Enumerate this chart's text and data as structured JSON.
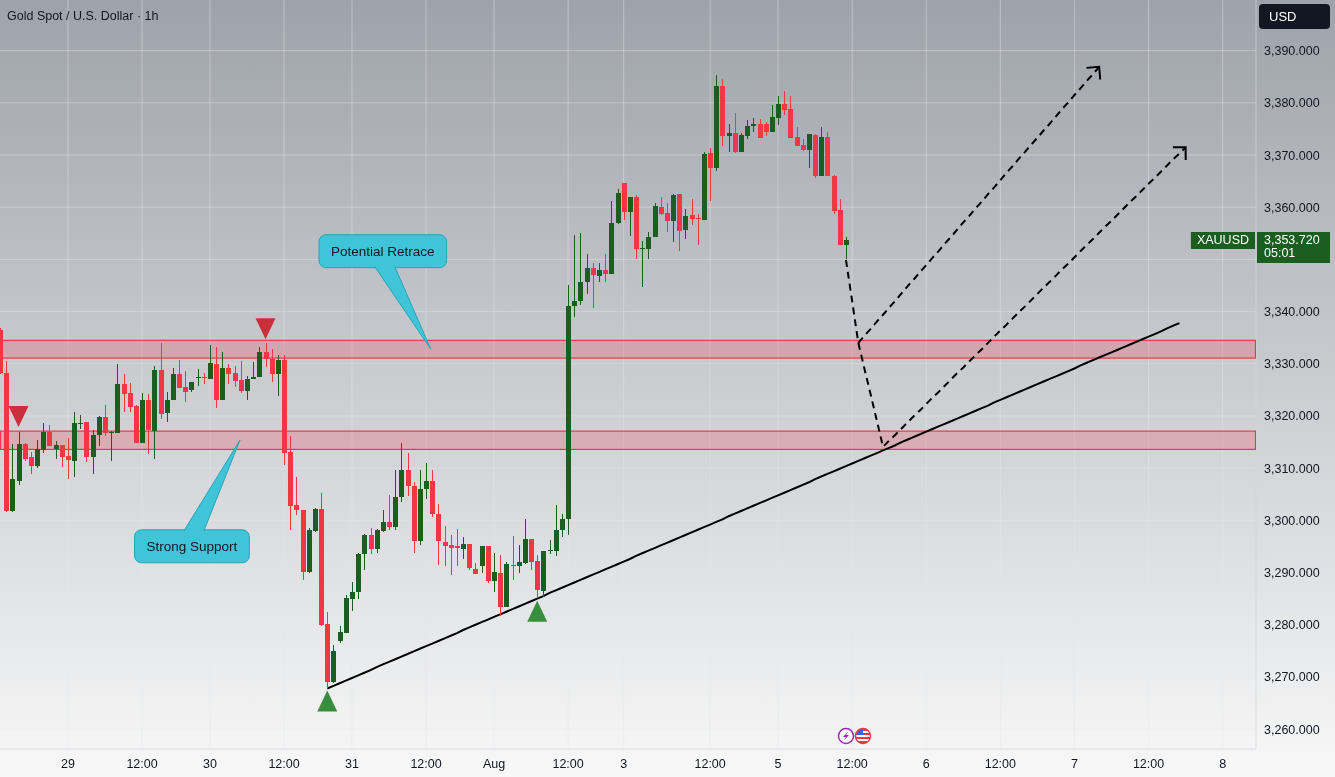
{
  "chart_data": {
    "type": "candlestick",
    "title": "Gold Spot / U.S. Dollar · 1h",
    "ylabel": "USD",
    "ylim": [
      3256.2,
      3399.7
    ],
    "yticks": [
      {
        "value": 3260,
        "label": "3,260.000"
      },
      {
        "value": 3270,
        "label": "3,270.000"
      },
      {
        "value": 3280,
        "label": "3,280.000"
      },
      {
        "value": 3290,
        "label": "3,290.000"
      },
      {
        "value": 3300,
        "label": "3,300.000"
      },
      {
        "value": 3310,
        "label": "3,310.000"
      },
      {
        "value": 3320,
        "label": "3,320.000"
      },
      {
        "value": 3330,
        "label": "3,330.000"
      },
      {
        "value": 3340,
        "label": "3,340.000"
      },
      {
        "value": 3350,
        "label": null
      },
      {
        "value": 3360,
        "label": "3,360.000"
      },
      {
        "value": 3370,
        "label": "3,370.000"
      },
      {
        "value": 3380,
        "label": "3,380.000"
      },
      {
        "value": 3390,
        "label": "3,390.000"
      }
    ],
    "grid": true,
    "categories": [
      null,
      null,
      null,
      null,
      null,
      null,
      null,
      null,
      null,
      null,
      null,
      "29",
      null,
      null,
      null,
      null,
      null,
      null,
      null,
      null,
      null,
      null,
      null,
      "12:00",
      null,
      null,
      null,
      null,
      null,
      null,
      null,
      null,
      null,
      null,
      "30",
      null,
      null,
      null,
      null,
      null,
      null,
      null,
      null,
      null,
      null,
      null,
      "12:00",
      null,
      null,
      null,
      null,
      null,
      null,
      null,
      null,
      null,
      null,
      "31",
      null,
      null,
      null,
      null,
      null,
      null,
      null,
      null,
      null,
      null,
      null,
      "12:00",
      null,
      null,
      null,
      null,
      null,
      null,
      null,
      null,
      null,
      null,
      "Aug",
      null,
      null,
      null,
      null,
      null,
      null,
      null,
      null,
      null,
      null,
      null,
      "12:00",
      null,
      null,
      null,
      null,
      null,
      null,
      null,
      null,
      "3",
      null,
      null,
      null,
      null,
      null,
      null,
      null,
      null,
      null,
      null,
      null,
      null,
      null,
      "12:00",
      null,
      null,
      null,
      null,
      null,
      null,
      null,
      null,
      null,
      null,
      "5",
      null,
      null,
      null,
      null,
      null,
      null,
      null,
      null,
      null,
      null,
      null,
      "12:00",
      null,
      null,
      null,
      null,
      null,
      null,
      null,
      null,
      null,
      null,
      null,
      "6",
      null,
      null,
      null,
      null,
      null,
      null,
      null,
      null,
      null,
      null,
      null,
      "12:00",
      null,
      null,
      null,
      null,
      null,
      null,
      null,
      null,
      null,
      null,
      null,
      "7",
      null,
      null,
      null,
      null,
      null,
      null,
      null,
      null,
      null,
      null,
      null,
      "12:00",
      null,
      null,
      null,
      null,
      null,
      null,
      null,
      null,
      null,
      null,
      null,
      "8",
      null,
      null,
      null,
      null,
      null
    ],
    "ohlc": [
      [
        3336.5,
        3336.8,
        3328.0,
        3328.2
      ],
      [
        3328.3,
        3330.6,
        3301.6,
        3301.8
      ],
      [
        3301.8,
        3314.6,
        3301.6,
        3307.9
      ],
      [
        3307.6,
        3317.0,
        3306.7,
        3314.7
      ],
      [
        3314.7,
        3314.9,
        3311.3,
        3311.8
      ],
      [
        3312.2,
        3313.1,
        3308.8,
        3310.5
      ],
      [
        3310.5,
        3315.4,
        3310.1,
        3313.7
      ],
      [
        3313.4,
        3318.7,
        3313.0,
        3317.0
      ],
      [
        3317.0,
        3318.3,
        3314.2,
        3314.2
      ],
      [
        3313.6,
        3315.2,
        3311.8,
        3314.5
      ],
      [
        3314.5,
        3314.5,
        3310.3,
        3312.2
      ],
      [
        3312.4,
        3315.8,
        3308.0,
        3311.5
      ],
      [
        3311.3,
        3320.8,
        3308.4,
        3318.6
      ],
      [
        3318.6,
        3320.2,
        3317.5,
        3318.7
      ],
      [
        3318.9,
        3318.9,
        3311.1,
        3312.2
      ],
      [
        3312.2,
        3317.3,
        3308.9,
        3316.4
      ],
      [
        3316.3,
        3320.0,
        3314.2,
        3319.8
      ],
      [
        3319.8,
        3322.1,
        3316.2,
        3316.8
      ],
      [
        3316.9,
        3317.1,
        3311.3,
        3317.0
      ],
      [
        3316.7,
        3330.0,
        3316.7,
        3326.1
      ],
      [
        3326.1,
        3328.1,
        3320.8,
        3324.3
      ],
      [
        3324.4,
        3326.3,
        3320.8,
        3321.8
      ],
      [
        3321.9,
        3322.1,
        3314.9,
        3314.9
      ],
      [
        3314.9,
        3324.4,
        3314.9,
        3323.1
      ],
      [
        3323.1,
        3324.2,
        3312.7,
        3317.3
      ],
      [
        3317.2,
        3329.6,
        3311.8,
        3328.8
      ],
      [
        3328.8,
        3333.9,
        3319.5,
        3320.3
      ],
      [
        3320.5,
        3324.6,
        3318.9,
        3323.1
      ],
      [
        3323.0,
        3329.2,
        3323.0,
        3328.1
      ],
      [
        3328.1,
        3330.7,
        3325.3,
        3325.4
      ],
      [
        3325.5,
        3328.6,
        3322.6,
        3324.6
      ],
      [
        3324.9,
        3326.6,
        3324.6,
        3326.5
      ],
      [
        3327.4,
        3329.0,
        3325.8,
        3327.5
      ],
      [
        3327.5,
        3328.3,
        3326.1,
        3327.4
      ],
      [
        3327.1,
        3333.6,
        3327.1,
        3330.2
      ],
      [
        3330.0,
        3333.2,
        3321.6,
        3323.0
      ],
      [
        3323.0,
        3332.3,
        3323.0,
        3329.2
      ],
      [
        3329.2,
        3330.0,
        3326.1,
        3328.1
      ],
      [
        3328.3,
        3329.6,
        3325.6,
        3326.8
      ],
      [
        3326.9,
        3330.6,
        3324.4,
        3324.7
      ],
      [
        3324.7,
        3327.7,
        3323.0,
        3327.1
      ],
      [
        3327.0,
        3330.4,
        3327.0,
        3327.5
      ],
      [
        3327.5,
        3333.2,
        3327.4,
        3332.2
      ],
      [
        3332.2,
        3333.9,
        3329.3,
        3331.0
      ],
      [
        3331.0,
        3332.8,
        3326.6,
        3328.1
      ],
      [
        3328.1,
        3331.6,
        3323.9,
        3330.7
      ],
      [
        3330.7,
        3331.7,
        3310.6,
        3313.0
      ],
      [
        3313.1,
        3316.1,
        3298.2,
        3302.8
      ],
      [
        3303.0,
        3308.4,
        3301.1,
        3301.9
      ],
      [
        3302.0,
        3302.0,
        3288.5,
        3290.2
      ],
      [
        3290.2,
        3298.5,
        3289.9,
        3298.1
      ],
      [
        3297.9,
        3302.3,
        3297.7,
        3302.2
      ],
      [
        3302.2,
        3305.2,
        3279.8,
        3280.0
      ],
      [
        3280.2,
        3282.5,
        3267.9,
        3269.1
      ],
      [
        3269.1,
        3276.2,
        3268.8,
        3275.0
      ],
      [
        3276.9,
        3279.8,
        3276.5,
        3278.6
      ],
      [
        3278.5,
        3285.7,
        3278.4,
        3285.2
      ],
      [
        3285.0,
        3288.2,
        3282.7,
        3286.3
      ],
      [
        3286.2,
        3293.8,
        3284.9,
        3293.6
      ],
      [
        3293.6,
        3297.4,
        3290.4,
        3297.2
      ],
      [
        3297.2,
        3298.5,
        3293.5,
        3294.5
      ],
      [
        3294.5,
        3298.4,
        3293.7,
        3298.1
      ],
      [
        3297.9,
        3301.9,
        3297.7,
        3299.7
      ],
      [
        3299.7,
        3304.8,
        3298.2,
        3298.8
      ],
      [
        3298.8,
        3309.7,
        3298.2,
        3304.4
      ],
      [
        3304.4,
        3314.9,
        3303.5,
        3309.7
      ],
      [
        3309.7,
        3312.9,
        3304.7,
        3306.5
      ],
      [
        3306.6,
        3307.4,
        3293.7,
        3296.0
      ],
      [
        3296.0,
        3309.7,
        3295.2,
        3306.0
      ],
      [
        3306.0,
        3311.0,
        3304.1,
        3307.5
      ],
      [
        3307.5,
        3309.7,
        3300.6,
        3301.2
      ],
      [
        3301.2,
        3303.2,
        3291.4,
        3296.0
      ],
      [
        3295.9,
        3299.0,
        3291.2,
        3295.1
      ],
      [
        3295.2,
        3297.2,
        3289.6,
        3294.8
      ],
      [
        3295.0,
        3298.3,
        3291.2,
        3294.8
      ],
      [
        3294.5,
        3296.9,
        3292.6,
        3295.5
      ],
      [
        3295.5,
        3295.5,
        3290.4,
        3290.8
      ],
      [
        3290.7,
        3291.8,
        3289.8,
        3289.8
      ],
      [
        3291.3,
        3295.1,
        3290.0,
        3295.0
      ],
      [
        3295.0,
        3295.0,
        3288.0,
        3288.3
      ],
      [
        3288.3,
        3293.7,
        3286.3,
        3290.1
      ],
      [
        3290.0,
        3293.4,
        3281.7,
        3283.5
      ],
      [
        3283.5,
        3292.1,
        3283.4,
        3291.7
      ],
      [
        3291.5,
        3297.0,
        3288.6,
        3291.2
      ],
      [
        3291.2,
        3295.2,
        3290.0,
        3292.1
      ],
      [
        3291.9,
        3300.2,
        3291.7,
        3296.5
      ],
      [
        3296.5,
        3296.5,
        3290.4,
        3292.1
      ],
      [
        3292.2,
        3293.4,
        3285.1,
        3286.6
      ],
      [
        3286.4,
        3294.2,
        3285.4,
        3294.2
      ],
      [
        3294.3,
        3296.3,
        3293.6,
        3294.4
      ],
      [
        3294.2,
        3303.0,
        3293.2,
        3298.2
      ],
      [
        3298.1,
        3301.2,
        3296.9,
        3300.2
      ],
      [
        3300.2,
        3345.1,
        3297.2,
        3341.1
      ],
      [
        3341.0,
        3354.7,
        3338.9,
        3342.1
      ],
      [
        3342.1,
        3355.1,
        3341.2,
        3345.7
      ],
      [
        3345.6,
        3351.1,
        3343.3,
        3348.4
      ],
      [
        3348.4,
        3349.3,
        3340.6,
        3347.0
      ],
      [
        3346.9,
        3349.3,
        3345.6,
        3348.0
      ],
      [
        3348.0,
        3351.1,
        3345.6,
        3347.2
      ],
      [
        3347.3,
        3361.2,
        3347.3,
        3357.0
      ],
      [
        3356.9,
        3363.4,
        3356.8,
        3362.8
      ],
      [
        3364.7,
        3364.7,
        3357.6,
        3359.0
      ],
      [
        3359.1,
        3362.0,
        3354.5,
        3362.0
      ],
      [
        3362.0,
        3362.4,
        3350.1,
        3351.9
      ],
      [
        3352.1,
        3353.5,
        3344.8,
        3352.2
      ],
      [
        3352.0,
        3355.3,
        3350.1,
        3354.3
      ],
      [
        3354.2,
        3360.8,
        3354.2,
        3360.3
      ],
      [
        3360.0,
        3362.0,
        3358.5,
        3358.7
      ],
      [
        3358.8,
        3360.8,
        3355.3,
        3357.4
      ],
      [
        3357.4,
        3362.5,
        3353.4,
        3362.4
      ],
      [
        3362.5,
        3362.5,
        3351.7,
        3355.5
      ],
      [
        3355.6,
        3359.7,
        3354.0,
        3358.3
      ],
      [
        3358.5,
        3361.6,
        3356.6,
        3357.8
      ],
      [
        3357.9,
        3358.7,
        3352.8,
        3357.8
      ],
      [
        3357.6,
        3370.6,
        3357.6,
        3370.2
      ],
      [
        3370.4,
        3371.3,
        3361.1,
        3367.6
      ],
      [
        3367.6,
        3385.3,
        3366.9,
        3383.2
      ],
      [
        3383.2,
        3384.6,
        3371.7,
        3373.7
      ],
      [
        3373.7,
        3375.9,
        3370.6,
        3374.2
      ],
      [
        3374.2,
        3378.1,
        3370.4,
        3370.6
      ],
      [
        3370.6,
        3374.2,
        3370.6,
        3373.9
      ],
      [
        3373.7,
        3376.7,
        3373.1,
        3375.6
      ],
      [
        3375.5,
        3377.1,
        3374.4,
        3376.0
      ],
      [
        3376.0,
        3376.9,
        3373.3,
        3373.3
      ],
      [
        3376.0,
        3376.3,
        3373.7,
        3374.4
      ],
      [
        3374.4,
        3379.6,
        3374.4,
        3377.3
      ],
      [
        3377.1,
        3381.3,
        3375.8,
        3379.8
      ],
      [
        3379.8,
        3382.3,
        3377.7,
        3378.6
      ],
      [
        3378.8,
        3381.3,
        3373.3,
        3373.3
      ],
      [
        3373.5,
        3375.4,
        3371.7,
        3371.7
      ],
      [
        3371.9,
        3373.1,
        3370.8,
        3371.0
      ],
      [
        3370.9,
        3374.0,
        3367.5,
        3374.0
      ],
      [
        3373.9,
        3374.0,
        3365.6,
        3366.0
      ],
      [
        3366.0,
        3375.4,
        3366.0,
        3373.5
      ],
      [
        3373.5,
        3374.4,
        3365.9,
        3365.9
      ],
      [
        3366.0,
        3366.2,
        3358.7,
        3359.3
      ],
      [
        3359.5,
        3361.6,
        3352.8,
        3352.8
      ],
      [
        3352.8,
        3354.3,
        3350.0,
        3353.72
      ],
      null,
      null,
      null,
      null,
      null,
      null,
      null,
      null,
      null,
      null,
      null,
      null,
      null,
      null,
      null,
      null,
      null,
      null,
      null,
      null,
      null,
      null,
      null,
      null,
      null,
      null,
      null,
      null,
      null,
      null,
      null,
      null,
      null,
      null,
      null,
      null,
      null,
      null,
      null,
      null,
      null,
      null,
      null,
      null,
      null,
      null,
      null,
      null,
      null,
      null,
      null,
      null,
      null,
      null,
      null,
      null,
      null,
      null,
      null,
      null,
      null,
      null,
      null,
      null,
      null,
      null
    ],
    "colors": [
      "#f23645",
      "#f23645",
      "#1b5e20",
      "#1b5e20",
      "#f23645",
      "#f23645",
      "#1b5e20",
      "#1b5e20",
      "#f23645",
      "#1b5e20",
      "#f23645",
      "#f23645",
      "#1b5e20",
      "#1b5e20",
      "#f23645",
      "#1b5e20",
      "#1b5e20",
      "#f23645",
      "#1b5e20",
      "#1b5e20",
      "#f23645",
      "#f23645",
      "#f23645",
      "#1b5e20",
      "#f23645",
      "#1b5e20",
      "#f23645",
      "#1b5e20",
      "#1b5e20",
      "#f23645",
      "#f23645",
      "#1b5e20",
      "#1b5e20",
      "#f23645",
      "#1b5e20",
      "#f23645",
      "#1b5e20",
      "#f23645",
      "#f23645",
      "#f23645",
      "#1b5e20",
      "#1b5e20",
      "#1b5e20",
      "#f23645",
      "#f23645",
      "#1b5e20",
      "#f23645",
      "#f23645",
      "#f23645",
      "#f23645",
      "#1b5e20",
      "#1b5e20",
      "#f23645",
      "#f23645",
      "#1b5e20",
      "#1b5e20",
      "#1b5e20",
      "#1b5e20",
      "#1b5e20",
      "#1b5e20",
      "#f23645",
      "#1b5e20",
      "#1b5e20",
      "#f23645",
      "#1b5e20",
      "#1b5e20",
      "#f23645",
      "#f23645",
      "#1b5e20",
      "#1b5e20",
      "#f23645",
      "#f23645",
      "#f23645",
      "#f23645",
      "#f23645",
      "#1b5e20",
      "#f23645",
      "#f23645",
      "#1b5e20",
      "#f23645",
      "#1b5e20",
      "#f23645",
      "#1b5e20",
      "#f23645",
      "#1b5e20",
      "#1b5e20",
      "#f23645",
      "#f23645",
      "#1b5e20",
      "#1b5e20",
      "#1b5e20",
      "#1b5e20",
      "#1b5e20",
      "#1b5e20",
      "#1b5e20",
      "#1b5e20",
      "#f23645",
      "#1b5e20",
      "#f23645",
      "#1b5e20",
      "#1b5e20",
      "#f23645",
      "#1b5e20",
      "#f23645",
      "#1b5e20",
      "#1b5e20",
      "#1b5e20",
      "#f23645",
      "#f23645",
      "#1b5e20",
      "#f23645",
      "#1b5e20",
      "#f23645",
      "#f23645",
      "#1b5e20",
      "#f23645",
      "#1b5e20",
      "#f23645",
      "#1b5e20",
      "#f23645",
      "#1b5e20",
      "#1b5e20",
      "#1b5e20",
      "#f23645",
      "#f23645",
      "#1b5e20",
      "#1b5e20",
      "#f23645",
      "#f23645",
      "#f23645",
      "#f23645",
      "#1b5e20",
      "#f23645",
      "#1b5e20",
      "#f23645",
      "#f23645",
      "#f23645",
      "#1b5e20",
      null,
      null,
      null,
      null,
      null,
      null,
      null,
      null,
      null,
      null,
      null,
      null,
      null,
      null,
      null,
      null,
      null,
      null,
      null,
      null,
      null,
      null,
      null,
      null,
      null,
      null,
      null,
      null,
      null,
      null,
      null,
      null,
      null,
      null,
      null,
      null,
      null,
      null,
      null,
      null,
      null,
      null,
      null,
      null,
      null,
      null,
      null,
      null,
      null,
      null,
      null,
      null,
      null,
      null,
      null,
      null,
      null,
      null,
      null,
      null,
      null,
      null,
      null,
      null,
      null,
      null
    ],
    "bands": [
      {
        "axis": "y",
        "from": 3331.1,
        "to": 3334.5,
        "color": "#f23645"
      },
      {
        "axis": "y",
        "from": 3313.6,
        "to": 3317.1,
        "color": "#f23645"
      }
    ],
    "series": [
      {
        "type": "line",
        "color": "#000000",
        "values": [
          null,
          null,
          null,
          null,
          null,
          null,
          null,
          null,
          null,
          null,
          null,
          null,
          null,
          null,
          null,
          null,
          null,
          null,
          null,
          null,
          null,
          null,
          null,
          null,
          null,
          null,
          null,
          null,
          null,
          null,
          null,
          null,
          null,
          null,
          null,
          null,
          null,
          null,
          null,
          null,
          null,
          null,
          null,
          null,
          null,
          null,
          null,
          null,
          null,
          null,
          null,
          null,
          null,
          3267.8,
          3268.3,
          3268.8,
          3269.3,
          3269.8,
          3270.3,
          3270.8,
          3271.3,
          3271.9,
          3272.4,
          3272.9,
          3273.4,
          3273.9,
          3274.4,
          3274.9,
          3275.4,
          3275.9,
          3276.4,
          3276.9,
          3277.4,
          3277.9,
          3278.4,
          3279.0,
          3279.5,
          3280.0,
          3280.5,
          3281.0,
          3281.5,
          3282.0,
          3282.5,
          3283.0,
          3283.5,
          3284.0,
          3284.5,
          3285.0,
          3285.5,
          3286.1,
          3286.6,
          3287.1,
          3287.6,
          3288.1,
          3288.6,
          3289.1,
          3289.6,
          3290.1,
          3290.6,
          3291.1,
          3291.6,
          3292.1,
          3292.6,
          3293.2,
          3293.7,
          3294.2,
          3294.7,
          3295.2,
          3295.7,
          3296.2,
          3296.7,
          3297.2,
          3297.7,
          3298.2,
          3298.7,
          3299.2,
          3299.7,
          3300.2,
          3300.8,
          3301.3,
          3301.8,
          3302.3,
          3302.8,
          3303.3,
          3303.8,
          3304.3,
          3304.8,
          3305.3,
          3305.8,
          3306.3,
          3306.8,
          3307.3,
          3307.9,
          3308.4,
          3308.9,
          3309.4,
          3309.9,
          3310.4,
          3310.9,
          3311.4,
          3311.9,
          3312.4,
          3312.9,
          3313.4,
          3313.9,
          3314.4,
          3315.0,
          3315.5,
          3316.0,
          3316.5,
          3317.0,
          3317.5,
          3318.0,
          3318.5,
          3319.0,
          3319.5,
          3320.0,
          3320.5,
          3321.0,
          3321.5,
          3322.0,
          3322.6,
          3323.1,
          3323.6,
          3324.1,
          3324.6,
          3325.1,
          3325.6,
          3326.1,
          3326.6,
          3327.1,
          3327.6,
          3328.1,
          3328.6,
          3329.1,
          3329.7,
          3330.2,
          3330.7,
          3331.2,
          3331.7,
          3332.2,
          3332.7,
          3333.2,
          3333.7,
          3334.2,
          3334.7,
          3335.2,
          3335.7,
          3336.2,
          3336.8,
          3337.3,
          3337.8,
          null,
          null,
          null,
          null,
          null,
          null,
          null,
          null,
          null,
          null,
          null,
          null
        ]
      },
      {
        "type": "line",
        "color": "#000000",
        "line_style": "dashed",
        "values": [
          null,
          null,
          null,
          null,
          null,
          null,
          null,
          null,
          null,
          null,
          null,
          null,
          null,
          null,
          null,
          null,
          null,
          null,
          null,
          null,
          null,
          null,
          null,
          null,
          null,
          null,
          null,
          null,
          null,
          null,
          null,
          null,
          null,
          null,
          null,
          null,
          null,
          null,
          null,
          null,
          null,
          null,
          null,
          null,
          null,
          null,
          null,
          null,
          null,
          null,
          null,
          null,
          null,
          null,
          null,
          null,
          null,
          null,
          null,
          null,
          null,
          null,
          null,
          null,
          null,
          null,
          null,
          null,
          null,
          null,
          null,
          null,
          null,
          null,
          null,
          null,
          null,
          null,
          null,
          null,
          null,
          null,
          null,
          null,
          null,
          null,
          null,
          null,
          null,
          null,
          null,
          null,
          null,
          null,
          null,
          null,
          null,
          null,
          null,
          null,
          null,
          null,
          null,
          null,
          null,
          null,
          null,
          null,
          null,
          null,
          null,
          null,
          null,
          null,
          null,
          null,
          null,
          null,
          null,
          null,
          null,
          null,
          null,
          null,
          null,
          null,
          null,
          null,
          null,
          null,
          null,
          null,
          null,
          null,
          null,
          null,
          null,
          3349.9,
          3342.0,
          3334.0,
          3329.0,
          3324.1,
          3319.1,
          3314.1,
          3315.3,
          3316.4,
          3317.6,
          3318.8,
          3320.0,
          3321.1,
          3322.3,
          3323.5,
          3324.6,
          3325.8,
          3327.0,
          3328.2,
          3329.3,
          3330.5,
          3331.7,
          3332.8,
          3334.0,
          3335.2,
          3336.4,
          3337.5,
          3338.7,
          3339.9,
          3341.0,
          3342.2,
          3343.4,
          3344.6,
          3345.7,
          3346.9,
          3348.1,
          3349.2,
          3350.4,
          3351.6,
          3352.8,
          3353.9,
          3355.1,
          3356.3,
          3357.4,
          3358.6,
          3359.8,
          3361.0,
          3362.1,
          3363.3,
          3364.5,
          3365.6,
          3366.8,
          3368.0,
          3369.2,
          3370.3,
          3371.5,
          null,
          null,
          null,
          null,
          null,
          null,
          null,
          null,
          null,
          null,
          null
        ]
      },
      {
        "type": "line",
        "color": "#000000",
        "line_style": "dashed",
        "values": [
          null,
          null,
          null,
          null,
          null,
          null,
          null,
          null,
          null,
          null,
          null,
          null,
          null,
          null,
          null,
          null,
          null,
          null,
          null,
          null,
          null,
          null,
          null,
          null,
          null,
          null,
          null,
          null,
          null,
          null,
          null,
          null,
          null,
          null,
          null,
          null,
          null,
          null,
          null,
          null,
          null,
          null,
          null,
          null,
          null,
          null,
          null,
          null,
          null,
          null,
          null,
          null,
          null,
          null,
          null,
          null,
          null,
          null,
          null,
          null,
          null,
          null,
          null,
          null,
          null,
          null,
          null,
          null,
          null,
          null,
          null,
          null,
          null,
          null,
          null,
          null,
          null,
          null,
          null,
          null,
          null,
          null,
          null,
          null,
          null,
          null,
          null,
          null,
          null,
          null,
          null,
          null,
          null,
          null,
          null,
          null,
          null,
          null,
          null,
          null,
          null,
          null,
          null,
          null,
          null,
          null,
          null,
          null,
          null,
          null,
          null,
          null,
          null,
          null,
          null,
          null,
          null,
          null,
          null,
          null,
          null,
          null,
          null,
          null,
          null,
          null,
          null,
          null,
          null,
          null,
          null,
          null,
          null,
          null,
          null,
          null,
          null,
          null,
          null,
          3334.0,
          3335.4,
          3336.7,
          3338.1,
          3339.4,
          3340.8,
          3342.1,
          3343.5,
          3344.9,
          3346.2,
          3347.6,
          3348.9,
          3350.3,
          3351.6,
          3353.0,
          3354.3,
          3355.7,
          3357.1,
          3358.4,
          3359.8,
          3361.1,
          3362.5,
          3363.8,
          3365.2,
          3366.6,
          3367.9,
          3369.3,
          3370.6,
          3372.0,
          3373.3,
          3374.7,
          3376.0,
          3377.4,
          3378.8,
          3380.1,
          3381.5,
          3382.8,
          3384.2,
          3385.5,
          3386.9,
          null,
          null,
          null,
          null,
          null,
          null,
          null,
          null,
          null,
          null,
          null,
          null,
          null,
          null,
          null,
          null,
          null,
          null,
          null,
          null,
          null,
          null,
          null,
          null,
          null
        ]
      },
      {
        "type": "scatter",
        "color": "#cc2f3c",
        "marker": "triangle",
        "values": [
          null,
          null,
          null,
          3319.9,
          null,
          null,
          null,
          null,
          null,
          null,
          null,
          null,
          null,
          null,
          null,
          null,
          null,
          null,
          null,
          null,
          null,
          null,
          null,
          null,
          null,
          null,
          null,
          null,
          null,
          null,
          null,
          null,
          null,
          null,
          null,
          null,
          null,
          null,
          null,
          null,
          null,
          null,
          null,
          3336.7,
          null,
          null,
          null,
          null,
          null,
          null,
          null,
          null,
          null,
          null,
          null,
          null,
          null,
          null,
          null,
          null,
          null,
          null,
          null,
          null,
          null,
          null,
          null,
          null,
          null,
          null,
          null,
          null,
          null,
          null,
          null,
          null,
          null,
          null,
          null,
          null,
          null,
          null,
          null,
          null,
          null,
          null,
          null,
          null,
          null,
          null,
          null,
          null,
          null,
          null,
          null,
          null,
          null,
          null,
          null,
          null,
          null,
          null,
          null,
          null,
          null,
          null,
          null,
          null,
          null,
          null,
          null,
          null,
          null,
          null,
          null,
          null,
          null,
          null,
          null,
          null,
          null,
          null,
          null,
          null,
          null,
          null,
          null,
          null,
          null,
          null,
          null,
          null,
          null,
          null,
          null,
          null,
          null,
          null,
          null,
          null,
          null,
          null,
          null,
          null,
          null,
          null,
          null,
          null,
          null,
          null,
          null,
          null,
          null,
          null,
          null,
          null,
          null,
          null,
          null,
          null,
          null,
          null,
          null,
          null,
          null,
          null,
          null,
          null,
          null,
          null,
          null,
          null,
          null,
          null,
          null,
          null,
          null,
          null,
          null,
          null,
          null,
          null,
          null,
          null,
          null,
          null,
          null,
          null,
          null,
          null,
          null,
          null,
          null,
          null,
          null,
          null,
          null,
          null,
          null,
          null,
          null,
          null,
          null,
          null
        ]
      },
      {
        "type": "scatter",
        "color": "#388e3c",
        "marker": "triangle",
        "values": [
          null,
          null,
          null,
          null,
          null,
          null,
          null,
          null,
          null,
          null,
          null,
          null,
          null,
          null,
          null,
          null,
          null,
          null,
          null,
          null,
          null,
          null,
          null,
          null,
          null,
          null,
          null,
          null,
          null,
          null,
          null,
          null,
          null,
          null,
          null,
          null,
          null,
          null,
          null,
          null,
          null,
          null,
          null,
          null,
          null,
          null,
          null,
          null,
          null,
          null,
          null,
          null,
          null,
          3265.4,
          null,
          null,
          null,
          null,
          null,
          null,
          null,
          null,
          null,
          null,
          null,
          null,
          null,
          null,
          null,
          null,
          null,
          null,
          null,
          null,
          null,
          null,
          null,
          null,
          null,
          null,
          null,
          null,
          null,
          null,
          null,
          null,
          null,
          3282.6,
          null,
          null,
          null,
          null,
          null,
          null,
          null,
          null,
          null,
          null,
          null,
          null,
          null,
          null,
          null,
          null,
          null,
          null,
          null,
          null,
          null,
          null,
          null,
          null,
          null,
          null,
          null,
          null,
          null,
          null,
          null,
          null,
          null,
          null,
          null,
          null,
          null,
          null,
          null,
          null,
          null,
          null,
          null,
          null,
          null,
          null,
          null,
          null,
          null,
          null,
          null,
          null,
          null,
          null,
          null,
          null,
          null,
          null,
          null,
          null,
          null,
          null,
          null,
          null,
          null,
          null,
          null,
          null,
          null,
          null,
          null,
          null,
          null,
          null,
          null,
          null,
          null,
          null,
          null,
          null,
          null,
          null,
          null,
          null,
          null,
          null,
          null,
          null,
          null,
          null,
          null,
          null,
          null,
          null,
          null,
          null,
          null,
          null,
          null,
          null,
          null,
          null,
          null,
          null,
          null,
          null,
          null,
          null,
          null,
          null,
          null,
          null,
          null,
          null,
          null,
          null
        ]
      }
    ],
    "annotations": [
      "Potential Retrace",
      "Strong Support",
      "XAUUSD",
      "3,353.720",
      "05:01"
    ]
  }
}
